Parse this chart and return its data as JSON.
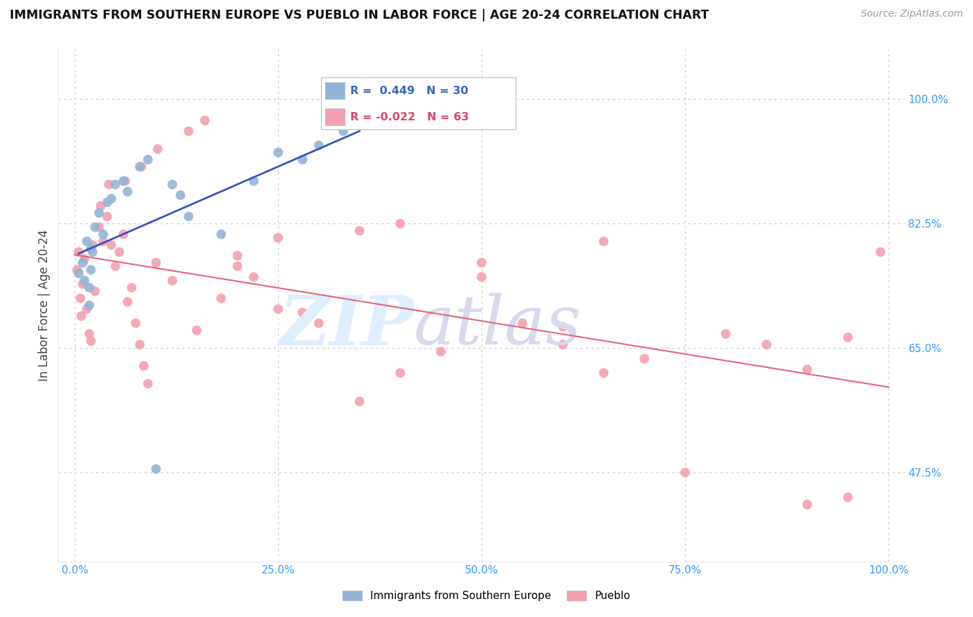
{
  "title": "IMMIGRANTS FROM SOUTHERN EUROPE VS PUEBLO IN LABOR FORCE | AGE 20-24 CORRELATION CHART",
  "source": "Source: ZipAtlas.com",
  "ylabel": "In Labor Force | Age 20-24",
  "xlim": [
    -2.0,
    102.0
  ],
  "ylim": [
    35.0,
    107.0
  ],
  "yticks": [
    47.5,
    65.0,
    82.5,
    100.0
  ],
  "xticks": [
    0.0,
    25.0,
    50.0,
    75.0,
    100.0
  ],
  "xtick_labels": [
    "0.0%",
    "25.0%",
    "50.0%",
    "75.0%",
    "100.0%"
  ],
  "ytick_labels": [
    "47.5%",
    "65.0%",
    "82.5%",
    "100.0%"
  ],
  "blue_label": "Immigrants from Southern Europe",
  "pink_label": "Pueblo",
  "blue_R": 0.449,
  "blue_N": 30,
  "pink_R": -0.022,
  "pink_N": 63,
  "blue_color": "#92B4D8",
  "pink_color": "#F4A0B0",
  "blue_line_color": "#3355BB",
  "pink_line_color": "#E8607A",
  "blue_x": [
    0.5,
    1.0,
    1.2,
    1.5,
    1.8,
    1.8,
    2.0,
    2.0,
    2.2,
    2.5,
    3.0,
    3.5,
    4.0,
    4.5,
    5.0,
    6.0,
    6.5,
    8.0,
    9.0,
    10.0,
    12.0,
    13.0,
    14.0,
    18.0,
    22.0,
    25.0,
    28.0,
    30.0,
    33.0,
    35.0
  ],
  "blue_y": [
    75.5,
    77.0,
    74.5,
    80.0,
    71.0,
    73.5,
    76.0,
    79.0,
    78.5,
    82.0,
    84.0,
    81.0,
    85.5,
    86.0,
    88.0,
    88.5,
    87.0,
    90.5,
    91.5,
    48.0,
    88.0,
    86.5,
    83.5,
    81.0,
    88.5,
    92.5,
    91.5,
    93.5,
    95.5,
    96.5
  ],
  "pink_x": [
    0.3,
    0.5,
    0.7,
    0.8,
    1.0,
    1.2,
    1.5,
    1.8,
    2.0,
    2.2,
    2.5,
    3.0,
    3.2,
    3.5,
    4.0,
    4.2,
    4.5,
    5.0,
    5.5,
    6.0,
    6.2,
    6.5,
    7.0,
    7.5,
    8.0,
    8.2,
    8.5,
    9.0,
    10.0,
    10.2,
    12.0,
    14.0,
    15.0,
    16.0,
    18.0,
    20.0,
    20.0,
    22.0,
    25.0,
    25.0,
    28.0,
    30.0,
    35.0,
    35.0,
    40.0,
    40.0,
    45.0,
    50.0,
    50.0,
    55.0,
    60.0,
    60.0,
    65.0,
    65.0,
    70.0,
    75.0,
    80.0,
    85.0,
    90.0,
    90.0,
    95.0,
    95.0,
    99.0
  ],
  "pink_y": [
    76.0,
    78.5,
    72.0,
    69.5,
    74.0,
    77.5,
    70.5,
    67.0,
    66.0,
    79.5,
    73.0,
    82.0,
    85.0,
    80.0,
    83.5,
    88.0,
    79.5,
    76.5,
    78.5,
    81.0,
    88.5,
    71.5,
    73.5,
    68.5,
    65.5,
    90.5,
    62.5,
    60.0,
    77.0,
    93.0,
    74.5,
    95.5,
    67.5,
    97.0,
    72.0,
    78.0,
    76.5,
    75.0,
    80.5,
    70.5,
    70.0,
    68.5,
    81.5,
    57.5,
    82.5,
    61.5,
    64.5,
    77.0,
    75.0,
    68.5,
    65.5,
    68.0,
    61.5,
    80.0,
    63.5,
    47.5,
    67.0,
    65.5,
    43.0,
    62.0,
    66.5,
    44.0,
    78.5
  ]
}
